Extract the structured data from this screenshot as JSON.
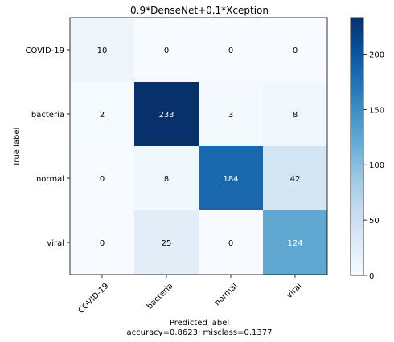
{
  "chart_data": {
    "type": "heatmap",
    "title": "0.9*DenseNet+0.1*Xception",
    "xlabel": "Predicted label",
    "xlabel_sub": "accuracy=0.8623; misclass=0.1377",
    "ylabel": "True label",
    "x_categories": [
      "COVID-19",
      "bacteria",
      "normal",
      "viral"
    ],
    "y_categories": [
      "COVID-19",
      "bacteria",
      "normal",
      "viral"
    ],
    "matrix": [
      [
        10,
        0,
        0,
        0
      ],
      [
        2,
        233,
        3,
        8
      ],
      [
        0,
        8,
        184,
        42
      ],
      [
        0,
        25,
        0,
        124
      ]
    ],
    "colormap": "Blues",
    "colorbar": {
      "range": [
        0,
        233
      ],
      "ticks": [
        0,
        50,
        100,
        150,
        200
      ]
    }
  }
}
